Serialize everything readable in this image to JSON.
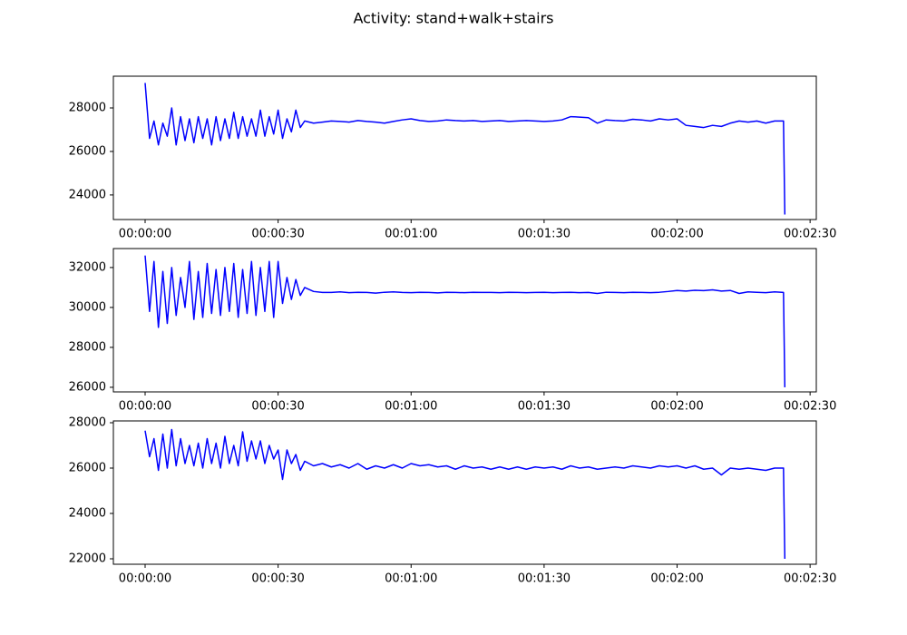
{
  "title": "Activity: stand+walk+stairs",
  "chart_data": [
    {
      "type": "line",
      "x": [
        0,
        1,
        2,
        3,
        4,
        5,
        6,
        7,
        8,
        9,
        10,
        11,
        12,
        13,
        14,
        15,
        16,
        17,
        18,
        19,
        20,
        21,
        22,
        23,
        24,
        25,
        26,
        27,
        28,
        29,
        30,
        31,
        32,
        33,
        34,
        35,
        36,
        38,
        40,
        42,
        44,
        46,
        48,
        50,
        52,
        54,
        56,
        58,
        60,
        62,
        64,
        66,
        68,
        70,
        72,
        74,
        76,
        78,
        80,
        82,
        84,
        86,
        88,
        90,
        92,
        94,
        96,
        98,
        100,
        102,
        104,
        106,
        108,
        110,
        112,
        114,
        116,
        118,
        120,
        122,
        124,
        126,
        128,
        130,
        132,
        134,
        136,
        138,
        140,
        142,
        144,
        144.3
      ],
      "series": [
        {
          "color": "#0000ff",
          "values": [
            29150,
            26600,
            27400,
            26300,
            27300,
            26700,
            28000,
            26300,
            27600,
            26500,
            27500,
            26400,
            27600,
            26600,
            27500,
            26300,
            27600,
            26500,
            27500,
            26600,
            27800,
            26600,
            27600,
            26700,
            27500,
            26700,
            27900,
            26700,
            27600,
            26800,
            27900,
            26600,
            27500,
            26900,
            27900,
            27100,
            27400,
            27300,
            27350,
            27400,
            27380,
            27350,
            27420,
            27380,
            27350,
            27300,
            27380,
            27450,
            27500,
            27420,
            27380,
            27400,
            27450,
            27420,
            27400,
            27420,
            27380,
            27400,
            27420,
            27380,
            27400,
            27420,
            27400,
            27380,
            27400,
            27450,
            27600,
            27580,
            27550,
            27300,
            27450,
            27420,
            27400,
            27480,
            27450,
            27400,
            27500,
            27450,
            27500,
            27200,
            27150,
            27100,
            27200,
            27150,
            27300,
            27400,
            27350,
            27400,
            27300,
            27400,
            27400,
            23100
          ]
        }
      ],
      "xlim": [
        -7.16,
        151.4
      ],
      "ylim": [
        22870,
        29460
      ],
      "xticks": [
        {
          "value": 0,
          "label": "00:00:00"
        },
        {
          "value": 30,
          "label": "00:00:30"
        },
        {
          "value": 60,
          "label": "00:01:00"
        },
        {
          "value": 90,
          "label": "00:01:30"
        },
        {
          "value": 120,
          "label": "00:02:00"
        },
        {
          "value": 150,
          "label": "00:02:30"
        }
      ],
      "yticks": [
        24000,
        26000,
        28000
      ]
    },
    {
      "type": "line",
      "x": [
        0,
        1,
        2,
        3,
        4,
        5,
        6,
        7,
        8,
        9,
        10,
        11,
        12,
        13,
        14,
        15,
        16,
        17,
        18,
        19,
        20,
        21,
        22,
        23,
        24,
        25,
        26,
        27,
        28,
        29,
        30,
        31,
        32,
        33,
        34,
        35,
        36,
        38,
        40,
        42,
        44,
        46,
        48,
        50,
        52,
        54,
        56,
        58,
        60,
        62,
        64,
        66,
        68,
        70,
        72,
        74,
        76,
        78,
        80,
        82,
        84,
        86,
        88,
        90,
        92,
        94,
        96,
        98,
        100,
        102,
        104,
        106,
        108,
        110,
        112,
        114,
        116,
        118,
        120,
        122,
        124,
        126,
        128,
        130,
        132,
        134,
        136,
        138,
        140,
        142,
        144,
        144.3
      ],
      "series": [
        {
          "color": "#0000ff",
          "values": [
            32600,
            29800,
            32300,
            29000,
            31800,
            29200,
            32000,
            29600,
            31500,
            30000,
            32300,
            29400,
            31800,
            29500,
            32200,
            29700,
            31900,
            29600,
            32000,
            29800,
            32200,
            29500,
            31900,
            29700,
            32300,
            29600,
            32000,
            29800,
            32300,
            29500,
            32300,
            30200,
            31500,
            30400,
            31400,
            30600,
            31000,
            30800,
            30750,
            30750,
            30780,
            30740,
            30760,
            30750,
            30720,
            30760,
            30780,
            30750,
            30740,
            30760,
            30750,
            30730,
            30760,
            30750,
            30740,
            30760,
            30750,
            30750,
            30740,
            30760,
            30750,
            30740,
            30750,
            30760,
            30740,
            30750,
            30760,
            30740,
            30750,
            30700,
            30760,
            30750,
            30740,
            30760,
            30750,
            30740,
            30760,
            30800,
            30850,
            30820,
            30860,
            30840,
            30880,
            30820,
            30850,
            30700,
            30780,
            30760,
            30740,
            30780,
            30750,
            26000
          ]
        }
      ],
      "xlim": [
        -7.16,
        151.4
      ],
      "ylim": [
        25770,
        32950
      ],
      "xticks": [
        {
          "value": 0,
          "label": "00:00:00"
        },
        {
          "value": 30,
          "label": "00:00:30"
        },
        {
          "value": 60,
          "label": "00:01:00"
        },
        {
          "value": 90,
          "label": "00:01:30"
        },
        {
          "value": 120,
          "label": "00:02:00"
        },
        {
          "value": 150,
          "label": "00:02:30"
        }
      ],
      "yticks": [
        26000,
        28000,
        30000,
        32000
      ]
    },
    {
      "type": "line",
      "x": [
        0,
        1,
        2,
        3,
        4,
        5,
        6,
        7,
        8,
        9,
        10,
        11,
        12,
        13,
        14,
        15,
        16,
        17,
        18,
        19,
        20,
        21,
        22,
        23,
        24,
        25,
        26,
        27,
        28,
        29,
        30,
        31,
        32,
        33,
        34,
        35,
        36,
        38,
        40,
        42,
        44,
        46,
        48,
        50,
        52,
        54,
        56,
        58,
        60,
        62,
        64,
        66,
        68,
        70,
        72,
        74,
        76,
        78,
        80,
        82,
        84,
        86,
        88,
        90,
        92,
        94,
        96,
        98,
        100,
        102,
        104,
        106,
        108,
        110,
        112,
        114,
        116,
        118,
        120,
        122,
        124,
        126,
        128,
        130,
        132,
        134,
        136,
        138,
        140,
        142,
        144,
        144.3
      ],
      "series": [
        {
          "color": "#0000ff",
          "values": [
            27650,
            26500,
            27300,
            25900,
            27500,
            26000,
            27700,
            26100,
            27300,
            26200,
            27000,
            26100,
            27100,
            26000,
            27300,
            26200,
            27100,
            26000,
            27400,
            26200,
            27000,
            26100,
            27600,
            26300,
            27200,
            26400,
            27200,
            26200,
            27000,
            26400,
            26800,
            25500,
            26800,
            26200,
            26600,
            25900,
            26300,
            26100,
            26200,
            26050,
            26150,
            26000,
            26200,
            25950,
            26100,
            26000,
            26150,
            26000,
            26200,
            26100,
            26150,
            26050,
            26100,
            25950,
            26100,
            26000,
            26050,
            25950,
            26050,
            25950,
            26050,
            25950,
            26050,
            26000,
            26050,
            25950,
            26100,
            26000,
            26050,
            25950,
            26000,
            26050,
            26000,
            26100,
            26050,
            26000,
            26100,
            26050,
            26100,
            26000,
            26100,
            25950,
            26000,
            25700,
            26000,
            25950,
            26000,
            25950,
            25900,
            26000,
            26000,
            22000
          ]
        }
      ],
      "xlim": [
        -7.16,
        151.4
      ],
      "ylim": [
        21760,
        28080
      ],
      "xticks": [
        {
          "value": 0,
          "label": "00:00:00"
        },
        {
          "value": 30,
          "label": "00:00:30"
        },
        {
          "value": 60,
          "label": "00:01:00"
        },
        {
          "value": 90,
          "label": "00:01:30"
        },
        {
          "value": 120,
          "label": "00:02:00"
        },
        {
          "value": 150,
          "label": "00:02:30"
        }
      ],
      "yticks": [
        22000,
        24000,
        26000,
        28000
      ]
    }
  ]
}
